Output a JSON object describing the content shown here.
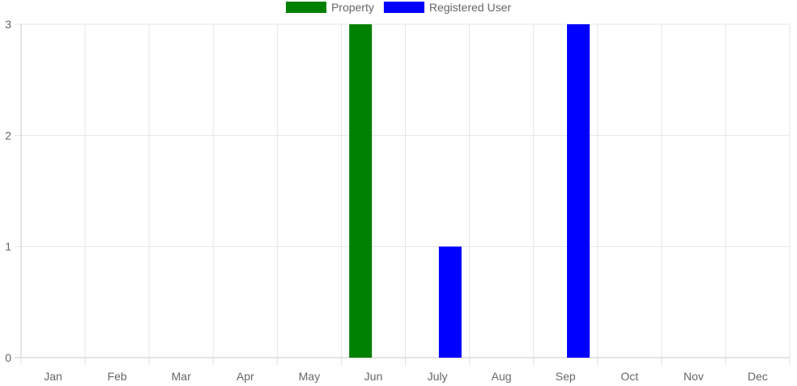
{
  "chart_data": {
    "type": "bar",
    "categories": [
      "Jan",
      "Feb",
      "Mar",
      "Apr",
      "May",
      "Jun",
      "July",
      "Aug",
      "Sep",
      "Oct",
      "Nov",
      "Dec"
    ],
    "series": [
      {
        "name": "Property",
        "color": "#008000",
        "values": [
          0,
          0,
          0,
          0,
          0,
          3,
          0,
          0,
          0,
          0,
          0,
          0
        ]
      },
      {
        "name": "Registered User",
        "color": "#0000ff",
        "values": [
          0,
          0,
          0,
          0,
          0,
          0,
          1,
          0,
          3,
          0,
          0,
          0
        ]
      }
    ],
    "yticks": [
      "0",
      "1",
      "2",
      "3"
    ],
    "ylim": [
      0,
      3
    ],
    "grid": true,
    "legend_position": "top-center",
    "title": "",
    "xlabel": "",
    "ylabel": ""
  }
}
